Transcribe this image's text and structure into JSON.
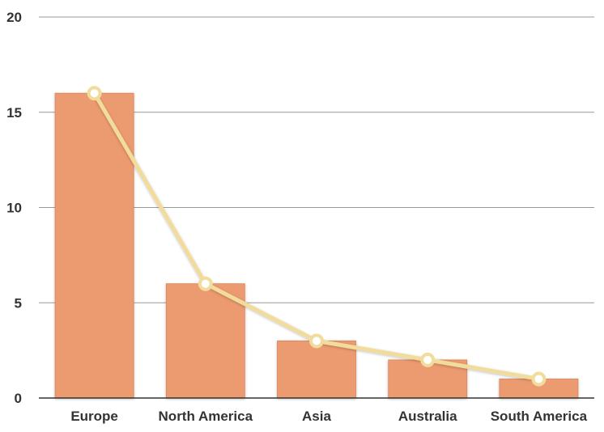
{
  "chart_data": {
    "type": "bar",
    "categories": [
      "Europe",
      "North America",
      "Asia",
      "Australia",
      "South America"
    ],
    "series": [
      {
        "type": "bar",
        "values": [
          16,
          6,
          3,
          2,
          1
        ]
      },
      {
        "type": "line",
        "values": [
          16,
          6,
          3,
          2,
          1
        ]
      }
    ],
    "ylim": [
      0,
      20
    ],
    "yticks": [
      0,
      5,
      10,
      15,
      20
    ],
    "grid": true,
    "colors": {
      "bar": "#ec9a6f",
      "bar_edge": "#d9855a",
      "line": "#f1dc9c",
      "marker_fill": "#ffffff",
      "grid": "#999999",
      "axis": "#333333"
    }
  }
}
